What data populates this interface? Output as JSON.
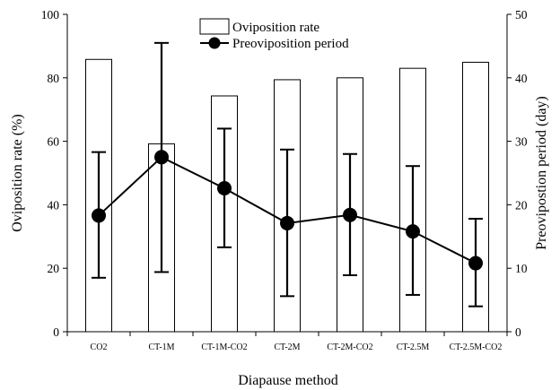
{
  "chart_data": {
    "type": "bar",
    "categories": [
      "CO2",
      "CT-1M",
      "CT-1M-CO2",
      "CT-2M",
      "CT-2M-CO2",
      "CT-2.5M",
      "CT-2.5M-CO2"
    ],
    "xlabel": "Diapause method",
    "ylabel": "Oviposition rate (%)",
    "ylabel_right": "Preovipostion period (day)",
    "ylim": [
      0,
      100
    ],
    "ylim_right": [
      0,
      50
    ],
    "yticks": [
      0,
      20,
      40,
      60,
      80,
      100
    ],
    "yticks_right": [
      0,
      10,
      20,
      30,
      40,
      50
    ],
    "legend_position": "top-center",
    "grid": false,
    "series": [
      {
        "name": "Oviposition rate",
        "type": "bar",
        "axis": "left",
        "values": [
          85.8,
          59.2,
          74.3,
          79.4,
          80.0,
          83.0,
          84.9
        ]
      },
      {
        "name": "Preoviposition period",
        "type": "line",
        "axis": "right",
        "values": [
          18.3,
          27.5,
          22.6,
          17.1,
          18.4,
          15.8,
          10.8
        ],
        "error_low": [
          8.5,
          9.4,
          13.3,
          5.6,
          8.9,
          5.8,
          4.0
        ],
        "error_high": [
          28.3,
          45.5,
          32.0,
          28.7,
          28.0,
          26.1,
          17.8
        ]
      }
    ]
  }
}
